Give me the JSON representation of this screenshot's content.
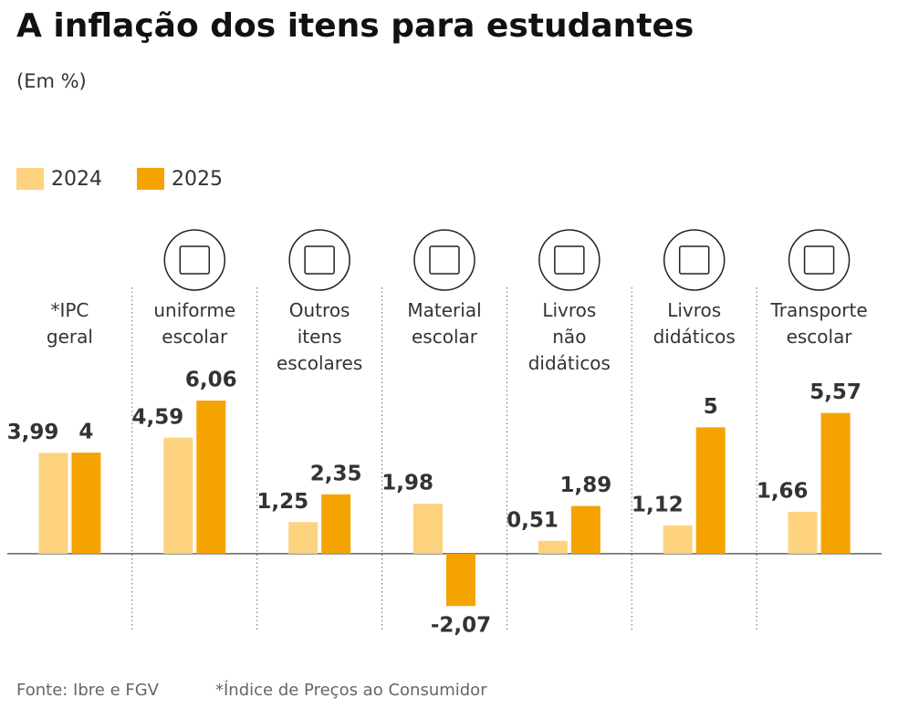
{
  "chart_data": {
    "type": "bar",
    "title": "A inflação dos itens para estudantes",
    "subtitle": "(Em %)",
    "categories": [
      "*IPC geral",
      "uniforme escolar",
      "Outros itens escolares",
      "Material escolar",
      "Livros não didáticos",
      "Livros didáticos",
      "Transporte escolar"
    ],
    "series": [
      {
        "name": "2024",
        "color": "#fdd37f",
        "values": [
          3.99,
          4.59,
          1.25,
          1.98,
          0.51,
          1.12,
          1.66
        ],
        "value_labels": [
          "3,99",
          "4,59",
          "1,25",
          "1,98",
          "0,51",
          "1,12",
          "1,66"
        ]
      },
      {
        "name": "2025",
        "color": "#f5a300",
        "values": [
          4,
          6.06,
          2.35,
          -2.07,
          1.89,
          5,
          5.57
        ],
        "value_labels": [
          "4",
          "6,06",
          "2,35",
          "-2,07",
          "1,89",
          "5",
          "5,57"
        ]
      }
    ],
    "ylim": [
      -3,
      7
    ],
    "source": "Fonte: Ibre e FGV",
    "note": "*Índice de Preços ao Consumidor"
  }
}
